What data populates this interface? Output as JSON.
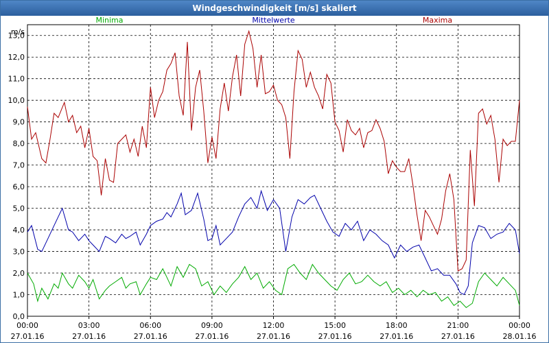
{
  "window": {
    "title": "Windgeschwindigkeit [m/s] skaliert"
  },
  "chart_data": {
    "type": "line",
    "title": "Windgeschwindigkeit [m/s] skaliert",
    "ylabel": "m/s",
    "ylim": [
      0,
      13.5
    ],
    "yticks": [
      "0,0",
      "1,0",
      "2,0",
      "3,0",
      "4,0",
      "5,0",
      "6,0",
      "7,0",
      "8,0",
      "9,0",
      "10,0",
      "11,0",
      "12,0",
      "13,0"
    ],
    "xlim_hours": [
      0,
      24
    ],
    "xticks": [
      {
        "time": "00:00",
        "date": "27.01.16"
      },
      {
        "time": "03:00",
        "date": "27.01.16"
      },
      {
        "time": "06:00",
        "date": "27.01.16"
      },
      {
        "time": "09:00",
        "date": "27.01.16"
      },
      {
        "time": "12:00",
        "date": "27.01.16"
      },
      {
        "time": "15:00",
        "date": "27.01.16"
      },
      {
        "time": "18:00",
        "date": "27.01.16"
      },
      {
        "time": "21:00",
        "date": "27.01.16"
      },
      {
        "time": "00:00",
        "date": "28.01.16"
      }
    ],
    "grid": true,
    "legend": "top",
    "series": [
      {
        "name": "Minima",
        "color": "#00aa00",
        "points": [
          [
            0,
            2.0
          ],
          [
            0.3,
            1.5
          ],
          [
            0.5,
            0.7
          ],
          [
            0.7,
            1.3
          ],
          [
            1.0,
            0.8
          ],
          [
            1.3,
            1.5
          ],
          [
            1.5,
            1.3
          ],
          [
            1.7,
            2.0
          ],
          [
            2.0,
            1.5
          ],
          [
            2.2,
            1.3
          ],
          [
            2.5,
            1.9
          ],
          [
            2.8,
            1.6
          ],
          [
            3.0,
            1.3
          ],
          [
            3.2,
            1.7
          ],
          [
            3.5,
            0.8
          ],
          [
            3.8,
            1.2
          ],
          [
            4.0,
            1.4
          ],
          [
            4.3,
            1.6
          ],
          [
            4.6,
            1.8
          ],
          [
            4.8,
            1.3
          ],
          [
            5.0,
            1.5
          ],
          [
            5.3,
            1.6
          ],
          [
            5.5,
            1.0
          ],
          [
            5.8,
            1.5
          ],
          [
            6.0,
            1.8
          ],
          [
            6.3,
            1.7
          ],
          [
            6.6,
            2.2
          ],
          [
            6.8,
            1.8
          ],
          [
            7.0,
            1.4
          ],
          [
            7.3,
            2.3
          ],
          [
            7.6,
            1.8
          ],
          [
            7.9,
            2.4
          ],
          [
            8.2,
            2.2
          ],
          [
            8.5,
            1.4
          ],
          [
            8.8,
            1.6
          ],
          [
            9.1,
            1.0
          ],
          [
            9.4,
            1.4
          ],
          [
            9.7,
            1.1
          ],
          [
            10.0,
            1.5
          ],
          [
            10.3,
            1.8
          ],
          [
            10.6,
            2.3
          ],
          [
            10.9,
            1.7
          ],
          [
            11.2,
            2.0
          ],
          [
            11.5,
            1.3
          ],
          [
            11.8,
            1.6
          ],
          [
            12.1,
            1.2
          ],
          [
            12.4,
            1.0
          ],
          [
            12.7,
            2.2
          ],
          [
            13.0,
            2.4
          ],
          [
            13.3,
            2.0
          ],
          [
            13.6,
            1.7
          ],
          [
            13.9,
            2.4
          ],
          [
            14.2,
            2.0
          ],
          [
            14.5,
            1.7
          ],
          [
            14.8,
            1.4
          ],
          [
            15.1,
            1.2
          ],
          [
            15.4,
            1.7
          ],
          [
            15.7,
            2.0
          ],
          [
            16.0,
            1.5
          ],
          [
            16.3,
            1.6
          ],
          [
            16.6,
            1.9
          ],
          [
            16.9,
            1.6
          ],
          [
            17.2,
            1.4
          ],
          [
            17.5,
            1.6
          ],
          [
            17.8,
            1.1
          ],
          [
            18.1,
            1.3
          ],
          [
            18.4,
            1.0
          ],
          [
            18.7,
            1.2
          ],
          [
            19.0,
            0.9
          ],
          [
            19.3,
            1.2
          ],
          [
            19.6,
            1.0
          ],
          [
            19.9,
            1.1
          ],
          [
            20.2,
            0.7
          ],
          [
            20.5,
            0.9
          ],
          [
            20.8,
            0.5
          ],
          [
            21.1,
            0.7
          ],
          [
            21.4,
            0.4
          ],
          [
            21.7,
            0.6
          ],
          [
            22.0,
            1.6
          ],
          [
            22.3,
            2.0
          ],
          [
            22.6,
            1.7
          ],
          [
            22.9,
            1.4
          ],
          [
            23.2,
            1.8
          ],
          [
            23.5,
            1.5
          ],
          [
            23.8,
            1.2
          ],
          [
            24.0,
            0.5
          ]
        ]
      },
      {
        "name": "Mittelwerte",
        "color": "#0000aa",
        "points": [
          [
            0,
            3.9
          ],
          [
            0.2,
            4.2
          ],
          [
            0.5,
            3.1
          ],
          [
            0.7,
            3.0
          ],
          [
            1.0,
            3.6
          ],
          [
            1.3,
            4.2
          ],
          [
            1.5,
            4.6
          ],
          [
            1.7,
            5.0
          ],
          [
            2.0,
            4.0
          ],
          [
            2.2,
            3.9
          ],
          [
            2.5,
            3.5
          ],
          [
            2.8,
            3.8
          ],
          [
            3.0,
            3.5
          ],
          [
            3.2,
            3.3
          ],
          [
            3.5,
            3.0
          ],
          [
            3.8,
            3.7
          ],
          [
            4.0,
            3.6
          ],
          [
            4.3,
            3.4
          ],
          [
            4.6,
            3.8
          ],
          [
            4.8,
            3.6
          ],
          [
            5.0,
            3.7
          ],
          [
            5.3,
            3.9
          ],
          [
            5.5,
            3.3
          ],
          [
            5.8,
            3.8
          ],
          [
            6.0,
            4.2
          ],
          [
            6.3,
            4.4
          ],
          [
            6.6,
            4.5
          ],
          [
            6.8,
            4.8
          ],
          [
            7.0,
            4.6
          ],
          [
            7.3,
            5.2
          ],
          [
            7.5,
            5.7
          ],
          [
            7.7,
            4.7
          ],
          [
            8.0,
            4.9
          ],
          [
            8.3,
            5.7
          ],
          [
            8.6,
            4.5
          ],
          [
            8.8,
            3.5
          ],
          [
            9.0,
            3.6
          ],
          [
            9.2,
            4.2
          ],
          [
            9.4,
            3.3
          ],
          [
            9.7,
            3.6
          ],
          [
            10.0,
            3.9
          ],
          [
            10.3,
            4.6
          ],
          [
            10.6,
            5.2
          ],
          [
            10.9,
            5.5
          ],
          [
            11.2,
            5.0
          ],
          [
            11.4,
            5.8
          ],
          [
            11.7,
            4.9
          ],
          [
            12.0,
            5.4
          ],
          [
            12.3,
            5.0
          ],
          [
            12.6,
            3.0
          ],
          [
            12.9,
            4.6
          ],
          [
            13.2,
            5.4
          ],
          [
            13.5,
            5.2
          ],
          [
            13.8,
            5.5
          ],
          [
            14.0,
            5.6
          ],
          [
            14.3,
            5.0
          ],
          [
            14.6,
            4.4
          ],
          [
            14.9,
            3.9
          ],
          [
            15.2,
            3.7
          ],
          [
            15.5,
            4.3
          ],
          [
            15.8,
            4.0
          ],
          [
            16.1,
            4.4
          ],
          [
            16.4,
            3.5
          ],
          [
            16.7,
            4.0
          ],
          [
            17.0,
            3.8
          ],
          [
            17.3,
            3.5
          ],
          [
            17.6,
            3.3
          ],
          [
            17.9,
            2.7
          ],
          [
            18.2,
            3.3
          ],
          [
            18.5,
            3.0
          ],
          [
            18.8,
            3.2
          ],
          [
            19.1,
            3.3
          ],
          [
            19.4,
            2.7
          ],
          [
            19.7,
            2.1
          ],
          [
            20.0,
            2.2
          ],
          [
            20.3,
            1.9
          ],
          [
            20.6,
            1.9
          ],
          [
            20.9,
            1.5
          ],
          [
            21.1,
            1.1
          ],
          [
            21.3,
            1.0
          ],
          [
            21.5,
            1.4
          ],
          [
            21.7,
            3.4
          ],
          [
            22.0,
            4.2
          ],
          [
            22.3,
            4.1
          ],
          [
            22.6,
            3.6
          ],
          [
            22.9,
            3.8
          ],
          [
            23.2,
            3.9
          ],
          [
            23.5,
            4.3
          ],
          [
            23.8,
            4.0
          ],
          [
            24.0,
            2.9
          ]
        ]
      },
      {
        "name": "Maxima",
        "color": "#aa0000",
        "points": [
          [
            0,
            9.7
          ],
          [
            0.2,
            8.2
          ],
          [
            0.4,
            8.5
          ],
          [
            0.7,
            7.3
          ],
          [
            0.9,
            7.1
          ],
          [
            1.1,
            8.2
          ],
          [
            1.3,
            9.4
          ],
          [
            1.5,
            9.2
          ],
          [
            1.8,
            9.9
          ],
          [
            2.0,
            9.0
          ],
          [
            2.2,
            9.3
          ],
          [
            2.4,
            8.5
          ],
          [
            2.6,
            8.8
          ],
          [
            2.8,
            7.8
          ],
          [
            3.0,
            8.7
          ],
          [
            3.2,
            7.4
          ],
          [
            3.4,
            7.2
          ],
          [
            3.6,
            5.6
          ],
          [
            3.8,
            7.3
          ],
          [
            4.0,
            6.3
          ],
          [
            4.2,
            6.2
          ],
          [
            4.4,
            8.0
          ],
          [
            4.6,
            8.2
          ],
          [
            4.8,
            8.4
          ],
          [
            5.0,
            7.6
          ],
          [
            5.2,
            8.2
          ],
          [
            5.4,
            7.4
          ],
          [
            5.6,
            8.8
          ],
          [
            5.8,
            7.8
          ],
          [
            6.0,
            10.6
          ],
          [
            6.2,
            9.2
          ],
          [
            6.4,
            10.0
          ],
          [
            6.6,
            10.4
          ],
          [
            6.8,
            11.4
          ],
          [
            7.0,
            11.7
          ],
          [
            7.2,
            12.2
          ],
          [
            7.4,
            10.2
          ],
          [
            7.6,
            9.3
          ],
          [
            7.8,
            12.7
          ],
          [
            8.0,
            8.6
          ],
          [
            8.2,
            10.6
          ],
          [
            8.4,
            11.4
          ],
          [
            8.6,
            9.5
          ],
          [
            8.8,
            7.1
          ],
          [
            9.0,
            8.3
          ],
          [
            9.2,
            7.3
          ],
          [
            9.4,
            9.6
          ],
          [
            9.6,
            10.8
          ],
          [
            9.8,
            9.5
          ],
          [
            10.0,
            11.1
          ],
          [
            10.2,
            12.1
          ],
          [
            10.4,
            10.2
          ],
          [
            10.6,
            12.6
          ],
          [
            10.8,
            13.2
          ],
          [
            11.0,
            12.4
          ],
          [
            11.2,
            10.6
          ],
          [
            11.4,
            12.1
          ],
          [
            11.6,
            10.3
          ],
          [
            11.8,
            10.4
          ],
          [
            12.0,
            10.7
          ],
          [
            12.2,
            10.0
          ],
          [
            12.4,
            9.8
          ],
          [
            12.6,
            9.2
          ],
          [
            12.8,
            7.3
          ],
          [
            13.0,
            10.4
          ],
          [
            13.2,
            12.3
          ],
          [
            13.4,
            11.9
          ],
          [
            13.6,
            10.6
          ],
          [
            13.8,
            11.3
          ],
          [
            14.0,
            10.6
          ],
          [
            14.2,
            10.2
          ],
          [
            14.4,
            9.6
          ],
          [
            14.6,
            11.2
          ],
          [
            14.8,
            10.8
          ],
          [
            15.0,
            9.0
          ],
          [
            15.2,
            8.6
          ],
          [
            15.4,
            7.6
          ],
          [
            15.6,
            9.1
          ],
          [
            15.8,
            8.6
          ],
          [
            16.0,
            8.4
          ],
          [
            16.2,
            8.7
          ],
          [
            16.4,
            7.8
          ],
          [
            16.6,
            8.5
          ],
          [
            16.8,
            8.6
          ],
          [
            17.0,
            9.1
          ],
          [
            17.2,
            8.7
          ],
          [
            17.4,
            8.1
          ],
          [
            17.6,
            6.6
          ],
          [
            17.8,
            7.2
          ],
          [
            18.0,
            6.9
          ],
          [
            18.2,
            6.7
          ],
          [
            18.4,
            6.7
          ],
          [
            18.6,
            7.3
          ],
          [
            18.8,
            6.1
          ],
          [
            19.0,
            4.7
          ],
          [
            19.2,
            3.5
          ],
          [
            19.4,
            4.9
          ],
          [
            19.6,
            4.6
          ],
          [
            19.8,
            4.2
          ],
          [
            20.0,
            3.8
          ],
          [
            20.2,
            4.5
          ],
          [
            20.4,
            5.8
          ],
          [
            20.6,
            6.6
          ],
          [
            20.8,
            5.4
          ],
          [
            21.0,
            2.1
          ],
          [
            21.2,
            2.2
          ],
          [
            21.4,
            2.6
          ],
          [
            21.6,
            7.7
          ],
          [
            21.8,
            5.1
          ],
          [
            22.0,
            9.4
          ],
          [
            22.2,
            9.6
          ],
          [
            22.4,
            8.9
          ],
          [
            22.6,
            9.3
          ],
          [
            22.8,
            8.2
          ],
          [
            23.0,
            6.2
          ],
          [
            23.2,
            8.2
          ],
          [
            23.4,
            7.9
          ],
          [
            23.6,
            8.1
          ],
          [
            23.8,
            8.1
          ],
          [
            24.0,
            10.0
          ]
        ]
      }
    ]
  }
}
